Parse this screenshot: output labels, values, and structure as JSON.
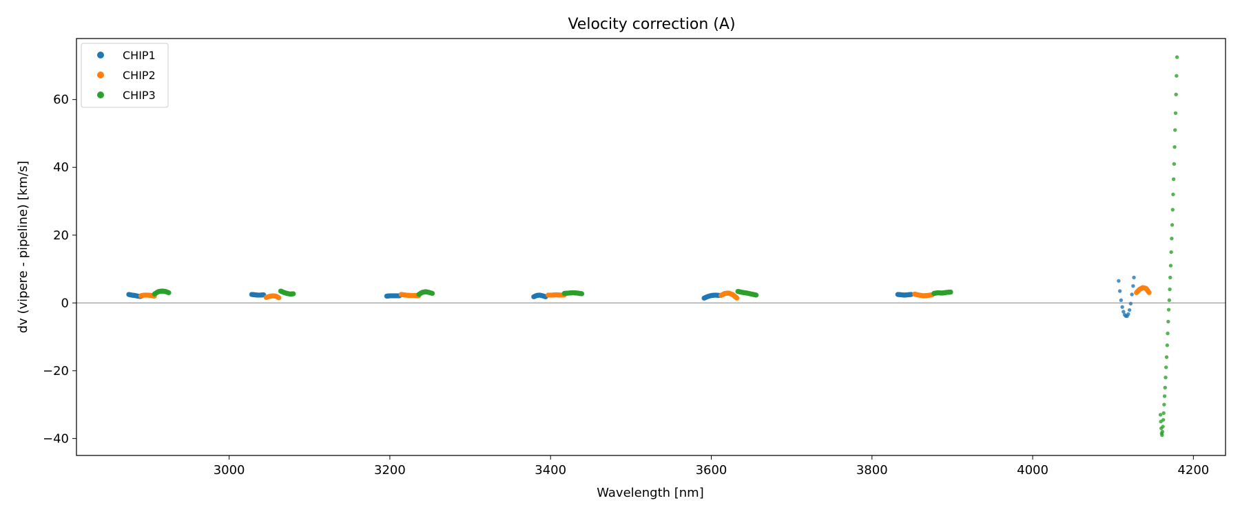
{
  "chart_data": {
    "type": "scatter",
    "title": "Velocity correction (A)",
    "xlabel": "Wavelength [nm]",
    "ylabel": "dv (vipere - pipeline) [km/s]",
    "xlim": [
      2810,
      4240
    ],
    "ylim": [
      -45,
      78
    ],
    "xticks": [
      3000,
      3200,
      3400,
      3600,
      3800,
      4000,
      4200
    ],
    "yticks": [
      -40,
      -20,
      0,
      20,
      40,
      60
    ],
    "reference_line_y": 0,
    "grid": false,
    "legend_position": "upper left",
    "series": [
      {
        "name": "CHIP1",
        "color": "#1f77b4",
        "segments": [
          {
            "x0": 2875,
            "x1": 2890,
            "y": [
              2.5,
              2.3,
              2.2,
              2.0,
              1.9
            ]
          },
          {
            "x0": 3028,
            "x1": 3043,
            "y": [
              2.5,
              2.4,
              2.3,
              2.3,
              2.4
            ]
          },
          {
            "x0": 3196,
            "x1": 3212,
            "y": [
              2.0,
              2.1,
              2.1,
              2.1,
              2.1
            ]
          },
          {
            "x0": 3379,
            "x1": 3394,
            "y": [
              1.8,
              2.2,
              2.3,
              2.1,
              1.8
            ]
          },
          {
            "x0": 3591,
            "x1": 3610,
            "y": [
              1.4,
              1.9,
              2.2,
              2.3,
              2.2
            ]
          },
          {
            "x0": 3832,
            "x1": 3849,
            "y": [
              2.5,
              2.4,
              2.3,
              2.4,
              2.5
            ]
          }
        ],
        "points": [
          [
            4107,
            6.5
          ],
          [
            4108.5,
            3.5
          ],
          [
            4110,
            0.8
          ],
          [
            4111.5,
            -1.2
          ],
          [
            4113,
            -2.6
          ],
          [
            4114.5,
            -3.5
          ],
          [
            4116,
            -3.9
          ],
          [
            4117.5,
            -3.9
          ],
          [
            4119,
            -3.3
          ],
          [
            4120.5,
            -2.1
          ],
          [
            4122,
            -0.2
          ],
          [
            4123.5,
            2.5
          ],
          [
            4125,
            5.0
          ],
          [
            4126,
            7.5
          ]
        ]
      },
      {
        "name": "CHIP2",
        "color": "#ff7f0e",
        "segments": [
          {
            "x0": 2890,
            "x1": 2907,
            "y": [
              2.1,
              2.3,
              2.3,
              2.2,
              2.0
            ]
          },
          {
            "x0": 3046,
            "x1": 3062,
            "y": [
              1.6,
              1.9,
              2.1,
              2.0,
              1.5
            ]
          },
          {
            "x0": 3214,
            "x1": 3236,
            "y": [
              2.5,
              2.3,
              2.2,
              2.2,
              2.1
            ]
          },
          {
            "x0": 3397,
            "x1": 3417,
            "y": [
              2.3,
              2.3,
              2.4,
              2.3,
              2.3
            ]
          },
          {
            "x0": 3612,
            "x1": 3632,
            "y": [
              2.2,
              2.8,
              2.9,
              2.4,
              1.4
            ]
          },
          {
            "x0": 3853,
            "x1": 3875,
            "y": [
              2.6,
              2.3,
              2.1,
              2.2,
              2.4
            ]
          },
          {
            "x0": 4129,
            "x1": 4145,
            "y": [
              3.0,
              4.0,
              4.5,
              4.3,
              3.0
            ]
          }
        ]
      },
      {
        "name": "CHIP3",
        "color": "#2ca02c",
        "segments": [
          {
            "x0": 2907,
            "x1": 2925,
            "y": [
              2.6,
              3.3,
              3.5,
              3.4,
              3.0
            ]
          },
          {
            "x0": 3064,
            "x1": 3080,
            "y": [
              3.5,
              3.1,
              2.8,
              2.6,
              2.7
            ]
          },
          {
            "x0": 3236,
            "x1": 3253,
            "y": [
              2.5,
              3.1,
              3.3,
              3.1,
              2.8
            ]
          },
          {
            "x0": 3417,
            "x1": 3439,
            "y": [
              2.8,
              2.9,
              3.0,
              2.9,
              2.7
            ]
          },
          {
            "x0": 3633,
            "x1": 3656,
            "y": [
              3.4,
              3.1,
              2.9,
              2.6,
              2.3
            ]
          },
          {
            "x0": 3877,
            "x1": 3898,
            "y": [
              2.8,
              3.0,
              2.9,
              3.1,
              3.2
            ]
          }
        ],
        "points": [
          [
            4159,
            -33
          ],
          [
            4159.5,
            -35
          ],
          [
            4160,
            -37
          ],
          [
            4160.5,
            -38.5
          ],
          [
            4161,
            -39
          ],
          [
            4161.5,
            -38
          ],
          [
            4162,
            -36.5
          ],
          [
            4162.5,
            -34.5
          ],
          [
            4163,
            -32.5
          ],
          [
            4163.6,
            -30
          ],
          [
            4164.2,
            -27.5
          ],
          [
            4164.8,
            -25
          ],
          [
            4165.4,
            -22
          ],
          [
            4166,
            -19
          ],
          [
            4166.7,
            -16
          ],
          [
            4167.4,
            -12.5
          ],
          [
            4168,
            -9
          ],
          [
            4168.7,
            -5.5
          ],
          [
            4169.3,
            -2
          ],
          [
            4170,
            0.8
          ],
          [
            4170.6,
            4
          ],
          [
            4171.2,
            7.5
          ],
          [
            4171.8,
            11
          ],
          [
            4172.4,
            15
          ],
          [
            4173,
            19
          ],
          [
            4173.6,
            23
          ],
          [
            4174.2,
            27.5
          ],
          [
            4174.8,
            32
          ],
          [
            4175.4,
            36.5
          ],
          [
            4176,
            41
          ],
          [
            4176.6,
            46
          ],
          [
            4177.2,
            51
          ],
          [
            4177.8,
            56
          ],
          [
            4178.4,
            61.5
          ],
          [
            4179,
            67
          ],
          [
            4179.6,
            72.5
          ]
        ]
      }
    ]
  }
}
